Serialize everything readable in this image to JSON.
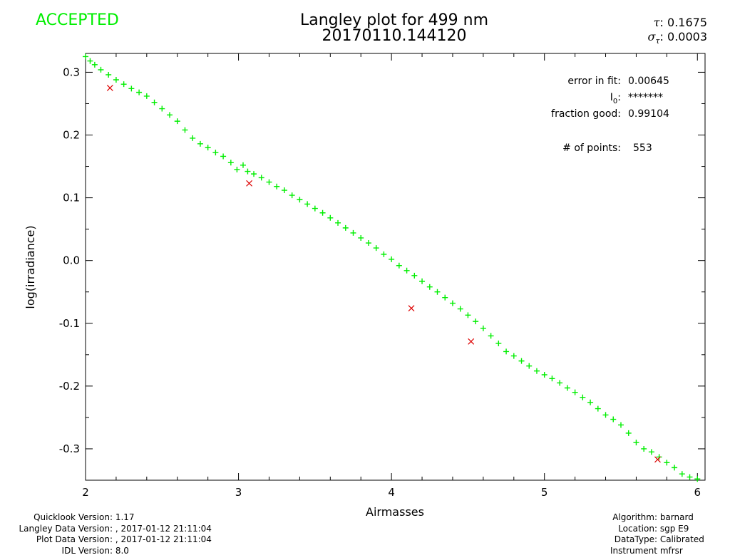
{
  "status": "ACCEPTED",
  "colors": {
    "status": "#00ee00",
    "points": "#00ee00",
    "rejected": "#dd0000",
    "axis": "#000000"
  },
  "header": {
    "title_line1": "Langley plot for 499 nm",
    "title_line2": "20170110.144120",
    "tau_label": "τ",
    "tau_value": ": 0.1675",
    "sigma_label": "σ",
    "sigma_sub": "τ",
    "sigma_value": ": 0.0003"
  },
  "stats": [
    {
      "label": "error in fit:",
      "value": "0.00645"
    },
    {
      "label": "I",
      "sub": "0",
      "label_tail": ":",
      "value": "*******"
    },
    {
      "label": "fraction good:",
      "value": "0.99104"
    },
    {
      "label": "# of points:",
      "value": "553"
    }
  ],
  "footer": {
    "left": [
      {
        "label": "Quicklook Version:",
        "value": "1.17"
      },
      {
        "label": "Langley Data Version:",
        "value": ", 2017-01-12 21:11:04"
      },
      {
        "label": "Plot Data Version:",
        "value": ", 2017-01-12 21:11:04"
      },
      {
        "label": "IDL Version:",
        "value": "8.0"
      }
    ],
    "right": [
      {
        "label": "Algorithm:",
        "value": "barnard"
      },
      {
        "label": "Location:",
        "value": "sgp E9"
      },
      {
        "label": "DataType:",
        "value": "Calibrated"
      },
      {
        "label": "Instrument",
        "value": "mfrsr"
      }
    ]
  },
  "chart_data": {
    "type": "scatter",
    "xlabel": "Airmasses",
    "ylabel": "log(irradiance)",
    "xlim": [
      2,
      6.05
    ],
    "ylim": [
      -0.35,
      0.33
    ],
    "xticks": [
      "2",
      "3",
      "4",
      "5",
      "6"
    ],
    "yticks": [
      "0.3",
      "0.2",
      "0.1",
      "0.0",
      "-0.1",
      "-0.2",
      "-0.3"
    ],
    "series": [
      {
        "marker": "plus",
        "color": "#00ee00",
        "points": [
          [
            2.0,
            0.325
          ],
          [
            2.03,
            0.318
          ],
          [
            2.06,
            0.312
          ],
          [
            2.1,
            0.304
          ],
          [
            2.15,
            0.296
          ],
          [
            2.2,
            0.288
          ],
          [
            2.25,
            0.281
          ],
          [
            2.3,
            0.274
          ],
          [
            2.35,
            0.268
          ],
          [
            2.4,
            0.262
          ],
          [
            2.45,
            0.252
          ],
          [
            2.5,
            0.242
          ],
          [
            2.55,
            0.232
          ],
          [
            2.6,
            0.222
          ],
          [
            2.65,
            0.208
          ],
          [
            2.7,
            0.195
          ],
          [
            2.75,
            0.186
          ],
          [
            2.8,
            0.18
          ],
          [
            2.85,
            0.172
          ],
          [
            2.9,
            0.166
          ],
          [
            2.95,
            0.156
          ],
          [
            2.99,
            0.145
          ],
          [
            3.03,
            0.152
          ],
          [
            3.06,
            0.142
          ],
          [
            3.1,
            0.138
          ],
          [
            3.15,
            0.132
          ],
          [
            3.2,
            0.125
          ],
          [
            3.25,
            0.118
          ],
          [
            3.3,
            0.112
          ],
          [
            3.35,
            0.104
          ],
          [
            3.4,
            0.097
          ],
          [
            3.45,
            0.09
          ],
          [
            3.5,
            0.083
          ],
          [
            3.55,
            0.076
          ],
          [
            3.6,
            0.068
          ],
          [
            3.65,
            0.06
          ],
          [
            3.7,
            0.052
          ],
          [
            3.75,
            0.044
          ],
          [
            3.8,
            0.036
          ],
          [
            3.85,
            0.028
          ],
          [
            3.9,
            0.02
          ],
          [
            3.95,
            0.01
          ],
          [
            4.0,
            0.002
          ],
          [
            4.05,
            -0.008
          ],
          [
            4.1,
            -0.016
          ],
          [
            4.15,
            -0.024
          ],
          [
            4.2,
            -0.033
          ],
          [
            4.25,
            -0.042
          ],
          [
            4.3,
            -0.05
          ],
          [
            4.35,
            -0.059
          ],
          [
            4.4,
            -0.068
          ],
          [
            4.45,
            -0.077
          ],
          [
            4.5,
            -0.087
          ],
          [
            4.55,
            -0.097
          ],
          [
            4.6,
            -0.108
          ],
          [
            4.65,
            -0.12
          ],
          [
            4.7,
            -0.132
          ],
          [
            4.75,
            -0.145
          ],
          [
            4.8,
            -0.152
          ],
          [
            4.85,
            -0.16
          ],
          [
            4.9,
            -0.168
          ],
          [
            4.95,
            -0.176
          ],
          [
            5.0,
            -0.182
          ],
          [
            5.05,
            -0.188
          ],
          [
            5.1,
            -0.195
          ],
          [
            5.15,
            -0.203
          ],
          [
            5.2,
            -0.21
          ],
          [
            5.25,
            -0.218
          ],
          [
            5.3,
            -0.226
          ],
          [
            5.35,
            -0.236
          ],
          [
            5.4,
            -0.246
          ],
          [
            5.45,
            -0.253
          ],
          [
            5.5,
            -0.262
          ],
          [
            5.55,
            -0.275
          ],
          [
            5.6,
            -0.29
          ],
          [
            5.65,
            -0.3
          ],
          [
            5.7,
            -0.305
          ],
          [
            5.75,
            -0.313
          ],
          [
            5.8,
            -0.322
          ],
          [
            5.85,
            -0.33
          ],
          [
            5.9,
            -0.34
          ],
          [
            5.95,
            -0.345
          ],
          [
            6.0,
            -0.348
          ]
        ]
      },
      {
        "marker": "x",
        "color": "#dd0000",
        "points": [
          [
            2.16,
            0.275
          ],
          [
            3.07,
            0.123
          ],
          [
            4.13,
            -0.076
          ],
          [
            4.52,
            -0.129
          ],
          [
            5.74,
            -0.317
          ]
        ]
      }
    ]
  }
}
